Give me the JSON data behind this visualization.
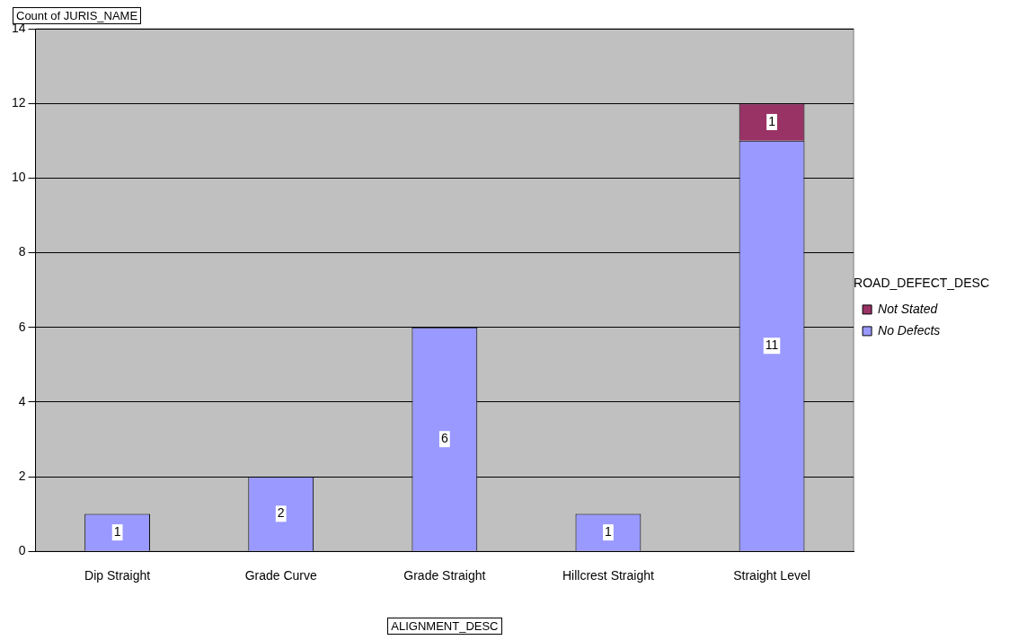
{
  "chart_data": {
    "type": "bar",
    "stacked": true,
    "xlabel": "ALIGNMENT_DESC",
    "ylabel": "Count of JURIS_NAME",
    "legend_title": "ROAD_DEFECT_DESC",
    "categories": [
      "Dip Straight",
      "Grade Curve",
      "Grade Straight",
      "Hillcrest Straight",
      "Straight Level"
    ],
    "series": [
      {
        "name": "No Defects",
        "color": "#9999ff",
        "values": [
          1,
          2,
          6,
          1,
          11
        ]
      },
      {
        "name": "Not Stated",
        "color": "#993366",
        "values": [
          null,
          null,
          null,
          null,
          1
        ]
      }
    ],
    "ylim": [
      0,
      14
    ],
    "yticks": [
      0,
      2,
      4,
      6,
      8,
      10,
      12,
      14
    ],
    "grid": "y",
    "legend": "right",
    "data_labels": true
  }
}
